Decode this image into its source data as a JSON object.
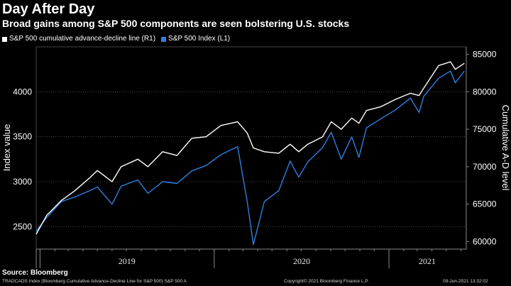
{
  "header": {
    "title": "Day After Day",
    "subtitle": "Broad gains among S&P 500 components are seen bolstering U.S. stocks"
  },
  "footer": {
    "source": "Source: Bloomberg",
    "index_note": "TRADCADS Index (Bloomberg Cumulative Advance-Decline Line for S&P 500) S&P 500 A",
    "copyright": "Copyright© 2021 Bloomberg Finance L.P.",
    "timestamp": "09-Jun-2021 13:32:02"
  },
  "colors": {
    "background": "#000000",
    "ad_line": "#ffffff",
    "spx": "#2f7fe0",
    "grid": "#555555"
  },
  "chart_data": {
    "type": "line",
    "title": "Day After Day",
    "subtitle": "Broad gains among S&P 500 components are seen bolstering U.S. stocks",
    "ylabel_left": "Index value",
    "ylabel_right": "Cumulative A-D level",
    "ylim_left": [
      2250,
      4500
    ],
    "ylim_right": [
      59000,
      86000
    ],
    "left_ticks": [
      "2500",
      "3000",
      "3500",
      "4000"
    ],
    "right_ticks": [
      "60000",
      "65000",
      "70000",
      "75000",
      "80000",
      "85000"
    ],
    "x_labels": [
      "2019",
      "2020",
      "2021"
    ],
    "grid": true,
    "legend_position": "top-left",
    "series": [
      {
        "name": "S&P 500 cumulative advance-decline line (R1)",
        "axis": "right",
        "x": [
          "2018-12-24",
          "2019-01-15",
          "2019-02-15",
          "2019-03-15",
          "2019-04-15",
          "2019-05-01",
          "2019-06-01",
          "2019-06-20",
          "2019-07-25",
          "2019-08-15",
          "2019-09-15",
          "2019-10-15",
          "2019-11-15",
          "2019-12-15",
          "2020-01-15",
          "2020-02-19",
          "2020-03-10",
          "2020-03-23",
          "2020-04-15",
          "2020-05-15",
          "2020-06-08",
          "2020-06-26",
          "2020-07-15",
          "2020-08-15",
          "2020-09-02",
          "2020-09-23",
          "2020-10-15",
          "2020-10-30",
          "2020-11-15",
          "2020-12-15",
          "2021-01-15",
          "2021-02-15",
          "2021-03-05",
          "2021-03-15",
          "2021-04-15",
          "2021-05-10",
          "2021-05-20",
          "2021-06-08"
        ],
        "values": [
          61000,
          63500,
          65500,
          66800,
          68500,
          69500,
          68000,
          70000,
          71000,
          70000,
          72000,
          71500,
          73800,
          74000,
          75500,
          76000,
          74500,
          72500,
          72000,
          71800,
          73000,
          72000,
          73000,
          74000,
          76000,
          75000,
          76500,
          75800,
          77500,
          78000,
          79000,
          79800,
          79500,
          80500,
          83500,
          84000,
          83000,
          83800
        ]
      },
      {
        "name": "S&P 500 Index (L1)",
        "axis": "left",
        "x": [
          "2018-12-24",
          "2019-01-15",
          "2019-02-15",
          "2019-03-15",
          "2019-04-15",
          "2019-05-01",
          "2019-06-01",
          "2019-06-20",
          "2019-07-25",
          "2019-08-15",
          "2019-09-15",
          "2019-10-15",
          "2019-11-15",
          "2019-12-15",
          "2020-01-15",
          "2020-02-19",
          "2020-03-10",
          "2020-03-23",
          "2020-04-15",
          "2020-05-15",
          "2020-06-08",
          "2020-06-26",
          "2020-07-15",
          "2020-08-15",
          "2020-09-02",
          "2020-09-23",
          "2020-10-15",
          "2020-10-30",
          "2020-11-15",
          "2020-12-15",
          "2021-01-15",
          "2021-02-15",
          "2021-03-05",
          "2021-03-15",
          "2021-04-15",
          "2021-05-10",
          "2021-05-20",
          "2021-06-08"
        ],
        "values": [
          2450,
          2600,
          2780,
          2830,
          2900,
          2940,
          2750,
          2950,
          3020,
          2870,
          3000,
          2980,
          3120,
          3180,
          3300,
          3390,
          2780,
          2300,
          2780,
          2900,
          3230,
          3050,
          3220,
          3380,
          3550,
          3250,
          3500,
          3270,
          3600,
          3700,
          3800,
          3930,
          3770,
          3950,
          4150,
          4230,
          4100,
          4230
        ]
      }
    ]
  }
}
